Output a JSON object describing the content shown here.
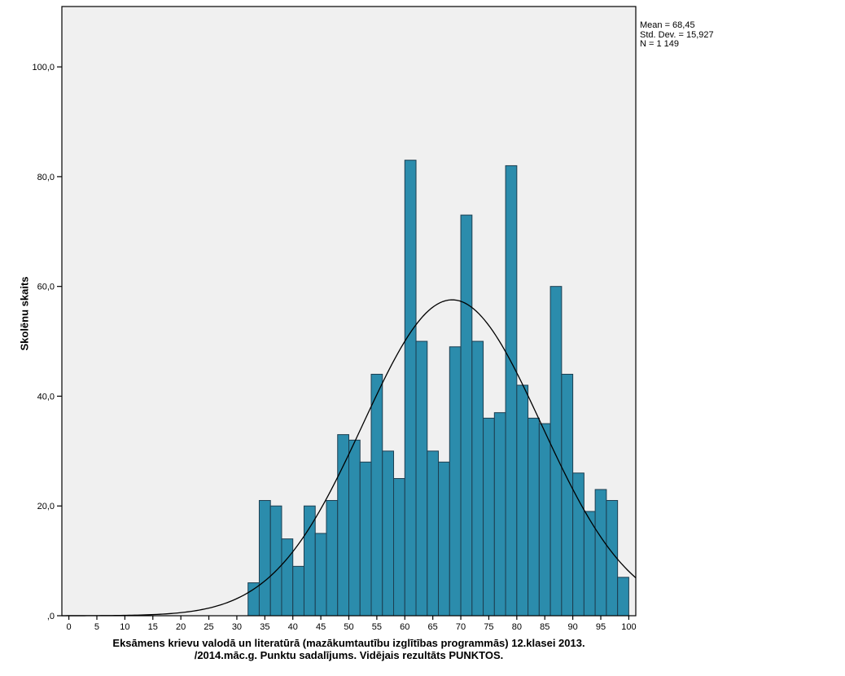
{
  "chart_data": {
    "type": "bar",
    "subtype": "histogram",
    "title_line1": "Eksāmens krievu valodā un literatūrā (mazākumtautību izglītības programmās) 12.klasei 2013.",
    "title_line2": "/2014.māc.g. Punktu sadalījums. Vidējais rezultāts PUNKTOS.",
    "ylabel": "Skolēnu skaits",
    "xlabel": "",
    "xlim": [
      0,
      100
    ],
    "ylim": [
      0,
      111
    ],
    "grid": false,
    "x_ticks": [
      0,
      5,
      10,
      15,
      20,
      25,
      30,
      35,
      40,
      45,
      50,
      55,
      60,
      65,
      70,
      75,
      80,
      85,
      90,
      95,
      100
    ],
    "x_tick_labels": [
      "0",
      "5",
      "10",
      "15",
      "20",
      "25",
      "30",
      "35",
      "40",
      "45",
      "50",
      "55",
      "60",
      "65",
      "70",
      "75",
      "80",
      "85",
      "90",
      "95",
      "100"
    ],
    "y_ticks": [
      0,
      20,
      40,
      60,
      80,
      100
    ],
    "y_tick_labels": [
      ",0",
      "20,0",
      "40,0",
      "60,0",
      "80,0",
      "100,0"
    ],
    "bin_width": 2,
    "bin_starts": [
      32,
      34,
      36,
      38,
      40,
      42,
      44,
      46,
      48,
      50,
      52,
      54,
      56,
      58,
      60,
      62,
      64,
      66,
      68,
      70,
      72,
      74,
      76,
      78,
      80,
      82,
      84,
      86,
      88,
      90,
      92,
      94,
      96,
      98
    ],
    "counts": [
      6,
      21,
      20,
      14,
      9,
      20,
      15,
      21,
      33,
      32,
      28,
      44,
      30,
      25,
      83,
      50,
      30,
      28,
      49,
      73,
      50,
      36,
      37,
      82,
      42,
      36,
      35,
      60,
      44,
      26,
      19,
      23,
      21,
      7
    ],
    "normal_curve": {
      "mean": 68.45,
      "std_dev": 15.927,
      "n": 1149
    },
    "stats_box": {
      "lines": [
        "Mean = 68,45",
        "Std. Dev. = 15,927",
        "N = 1 149"
      ]
    },
    "colors": {
      "bar_fill": "#2b8cac",
      "bar_stroke": "#1d3e50",
      "plot_bg": "#f0f0f0",
      "frame": "#000000",
      "curve": "#000000",
      "tick": "#000000",
      "text": "#000000"
    }
  }
}
